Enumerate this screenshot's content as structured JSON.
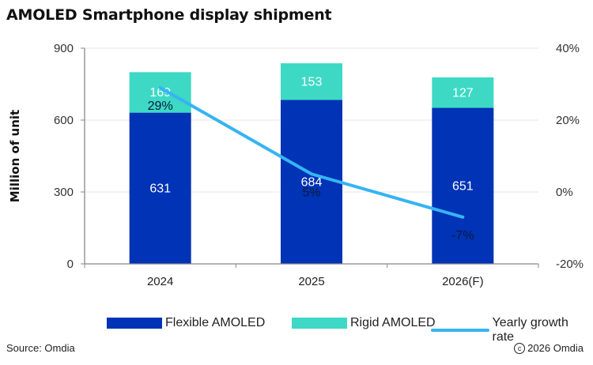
{
  "chart_data": {
    "type": "bar",
    "stacked": true,
    "title": "AMOLED Smartphone display shipment",
    "categories": [
      "2024",
      "2025",
      "2026(F)"
    ],
    "series": [
      {
        "name": "Flexible AMOLED",
        "type": "bar",
        "axis": "left",
        "color": "#0033B5",
        "values": [
          631,
          684,
          651
        ]
      },
      {
        "name": "Rigid AMOLED",
        "type": "bar",
        "axis": "left",
        "color": "#3DD9C4",
        "values": [
          169,
          153,
          127
        ]
      },
      {
        "name": "Yearly growth rate",
        "type": "line",
        "axis": "right",
        "color": "#35B4F3",
        "values": [
          29,
          5,
          -7
        ],
        "labels": [
          "29%",
          "5%",
          "-7%"
        ]
      }
    ],
    "ylabel": "Million of unit",
    "xlabel": "",
    "ylim": [
      0,
      900
    ],
    "yticks": [
      "0",
      "300",
      "600",
      "900"
    ],
    "y2lim": [
      -20,
      40
    ],
    "y2ticks": [
      "-20%",
      "0%",
      "20%",
      "40%"
    ],
    "grid": true,
    "legend_position": "bottom"
  },
  "footer": {
    "source": "Source: Omdia",
    "copyright": "2026 Omdia",
    "copyright_icon": "copyright-icon"
  }
}
